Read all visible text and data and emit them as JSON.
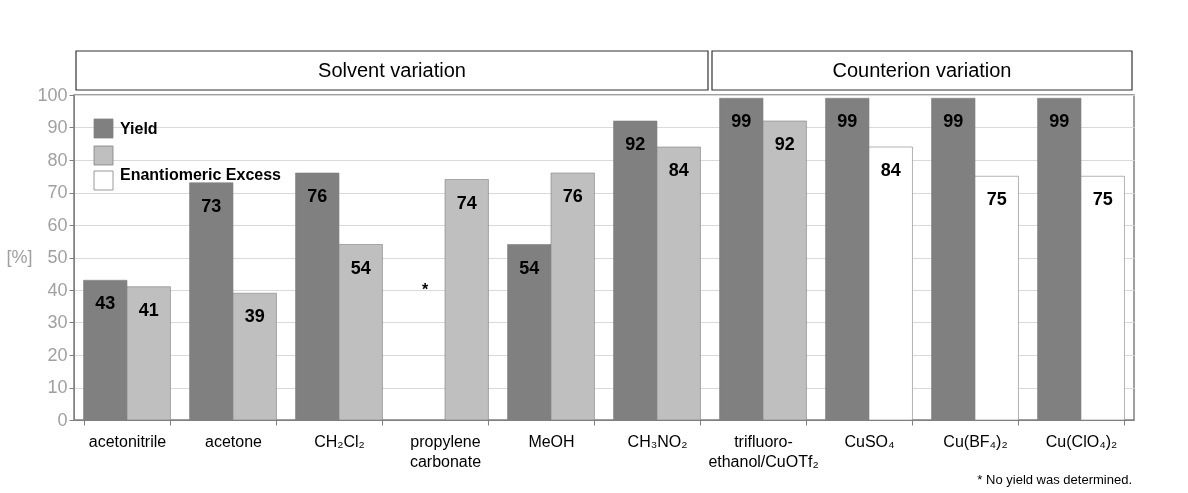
{
  "chart_data": {
    "type": "bar",
    "categories": [
      "acetonitrile",
      "acetone",
      "CH₂Cl₂",
      "propylene carbonate",
      "MeOH",
      "CH₃NO₂",
      "trifluoro-ethanol/CuOTf₂",
      "CuSO₄",
      "Cu(BF₄)₂",
      "Cu(ClO₄)₂"
    ],
    "series": [
      {
        "name": "Yield",
        "color": "#808080",
        "values": [
          43,
          73,
          76,
          null,
          54,
          92,
          99,
          99,
          99,
          99
        ]
      },
      {
        "name": "Enantiomeric Excess",
        "colors": [
          "#bfbfbf",
          "#bfbfbf",
          "#bfbfbf",
          "#bfbfbf",
          "#bfbfbf",
          "#bfbfbf",
          "#bfbfbf",
          "#ffffff",
          "#ffffff",
          "#ffffff"
        ],
        "values": [
          41,
          39,
          54,
          74,
          76,
          84,
          92,
          84,
          75,
          75
        ]
      }
    ],
    "ylabel": "[%]",
    "ylim": [
      0,
      100
    ],
    "yticks": [
      0,
      10,
      20,
      30,
      40,
      50,
      60,
      70,
      80,
      90,
      100
    ],
    "grid": "y",
    "legend": "top left",
    "data_labels": true,
    "annotations": [
      "Solvent variation",
      "Counterion variation",
      {
        "text": "*",
        "x": "propylene carbonate",
        "y": 40
      },
      "* No yield was determined."
    ]
  }
}
